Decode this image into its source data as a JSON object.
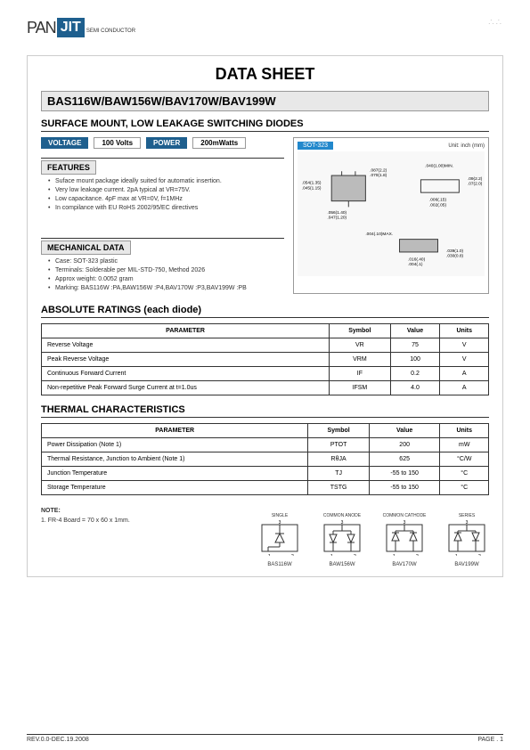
{
  "logo": {
    "pan": "PAN",
    "jit": "JIT",
    "sub": "SEMI CONDUCTOR"
  },
  "title": "DATA  SHEET",
  "partNumber": "BAS116W/BAW156W/BAV170W/BAV199W",
  "subtitle": "SURFACE MOUNT, LOW LEAKAGE SWITCHING DIODES",
  "specs": {
    "voltageLabel": "VOLTAGE",
    "voltageValue": "100 Volts",
    "powerLabel": "POWER",
    "powerValue": "200mWatts",
    "packageLabel": "SOT-323",
    "unitLabel": "Unit: inch (mm)"
  },
  "featuresHeader": "FEATURES",
  "features": [
    "Suface mount package ideally suited for automatic insertion.",
    "Very low leakage current. 2pA typical at VR=75V.",
    "Low capacitance. 4pF max at VR=0V, f=1MHz",
    "In compilance with EU RoHS 2002/95/EC directives"
  ],
  "mechHeader": "MECHANICAL DATA",
  "mechData": [
    "Case: SOT-323 plastic",
    "Terminals: Solderable per MIL-STD-750, Method 2026",
    "Approx weight: 0.0052 gram",
    "Marking: BAS116W :PA,BAW156W :P4,BAV170W :P3,BAV199W :PB"
  ],
  "absoluteHeader": "ABSOLUTE RATINGS (each diode)",
  "absoluteCols": [
    "PARAMETER",
    "Symbol",
    "Value",
    "Units"
  ],
  "absoluteRows": [
    [
      "Reverse Voltage",
      "VR",
      "75",
      "V"
    ],
    [
      "Peak Reverse Voltage",
      "VRM",
      "100",
      "V"
    ],
    [
      "Continuous Forward Current",
      "IF",
      "0.2",
      "A"
    ],
    [
      "Non-repetitive Peak Forward Surge Current at t=1.0us",
      "IFSM",
      "4.0",
      "A"
    ]
  ],
  "thermalHeader": "THERMAL CHARACTERISTICS",
  "thermalRows": [
    [
      "Power Dissipation (Note 1)",
      "PTOT",
      "200",
      "mW"
    ],
    [
      "Thermal Resistance, Junction to Ambient (Note 1)",
      "RθJA",
      "625",
      "°C/W"
    ],
    [
      "Junction Temperature",
      "TJ",
      "-55 to 150",
      "°C"
    ],
    [
      "Storage Temperature",
      "TSTG",
      "-55 to 150",
      "°C"
    ]
  ],
  "note": {
    "header": "NOTE:",
    "text": "1. FR-4 Board = 70 x 60 x 1mm."
  },
  "pinDiagrams": [
    {
      "header": "SINGLE",
      "label": "BAS116W"
    },
    {
      "header": "COMMON ANODE",
      "label": "BAW156W"
    },
    {
      "header": "COMMON CATHODE",
      "label": "BAV170W"
    },
    {
      "header": "SERIES",
      "label": "BAV199W"
    }
  ],
  "footer": {
    "rev": "REV.0.0-DEC.19.2008",
    "page": "PAGE . 1"
  },
  "pkgDims": {
    "d1": ".087(2.2)",
    "d2": ".070(1.8)",
    "d3": ".054(1.35)",
    "d4": ".045(1.15)",
    "d5": ".056(1.40)",
    "d6": ".047(1.20)",
    "d7": ".040(1.00)MIN.",
    "d8": ".09(2.2)",
    "d9": ".07(2.0)",
    "d10": ".006(.15)",
    "d11": ".002(.05)",
    "d12": ".004(.10)MAX.",
    "d13": ".016(.40)",
    "d14": ".004(.1)",
    "d15": ".039(1.0)",
    "d16": ".030(0.8)"
  }
}
